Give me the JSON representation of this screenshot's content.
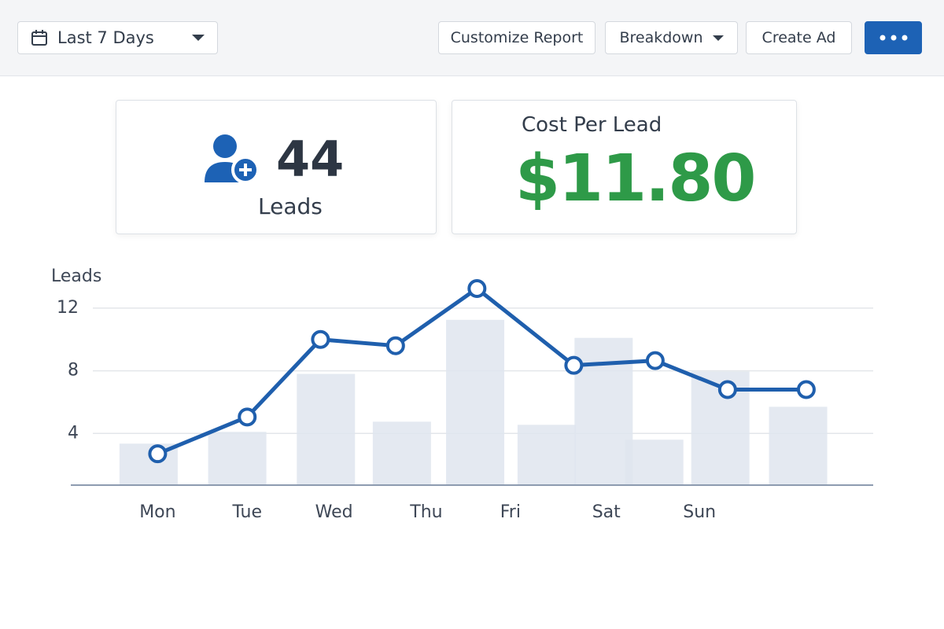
{
  "toolbar": {
    "date_range": "Last 7 Days",
    "buttons": [
      "Customize Report",
      "Breakdown",
      "Create Ad"
    ]
  },
  "cards": [
    {
      "value": "44",
      "label": "Leads"
    },
    {
      "label": "Cost Per Lead",
      "value": "$11.80"
    }
  ],
  "chart_data": {
    "type": "line",
    "y_label": "Leads",
    "xlim": [
      -0.96,
      7.91
    ],
    "ylim": [
      0.7,
      13.5
    ],
    "yticks": [
      4,
      8,
      12
    ],
    "grid": true,
    "xticks": [
      {
        "value": 0,
        "label": "Mon"
      },
      {
        "value": 0.99,
        "label": "Tue"
      },
      {
        "value": 1.95,
        "label": "Wed"
      },
      {
        "value": 2.97,
        "label": "Thu"
      },
      {
        "value": 3.9,
        "label": "Fri"
      },
      {
        "value": 4.96,
        "label": "Sat"
      },
      {
        "value": 5.99,
        "label": "Sun"
      }
    ],
    "series": [
      {
        "type": "bar",
        "color": "#dfe5ee",
        "x": [
          -0.1,
          0.88,
          1.86,
          2.7,
          3.51,
          4.3,
          4.93,
          5.49,
          6.22,
          7.08
        ],
        "values": [
          3.35,
          4.1,
          7.8,
          4.75,
          11.25,
          4.55,
          10.1,
          3.6,
          7.95,
          5.7
        ]
      },
      {
        "type": "line",
        "color": "#1f5fad",
        "x": [
          0,
          0.99,
          1.8,
          2.63,
          3.53,
          4.6,
          5.5,
          6.3,
          7.17
        ],
        "values": [
          2.7,
          5.05,
          10,
          9.6,
          13.25,
          8.35,
          8.65,
          6.8,
          6.8
        ]
      }
    ]
  }
}
